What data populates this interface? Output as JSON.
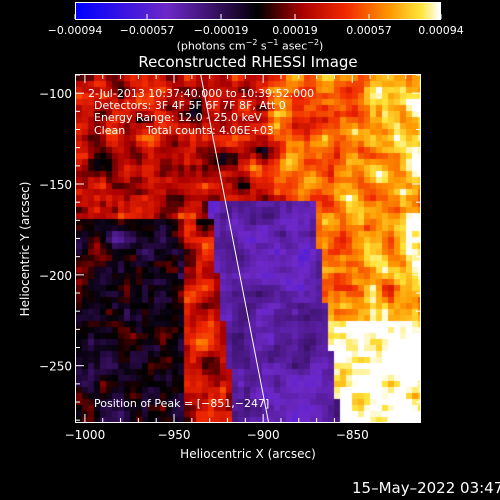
{
  "chart_data": {
    "type": "heatmap",
    "title": "Reconstructed RHESSI Image",
    "xlabel": "Heliocentric X (arcsec)",
    "ylabel": "Heliocentric Y (arcsec)",
    "xlim": [
      -1005,
      -812
    ],
    "ylim": [
      -281,
      -90
    ],
    "x_ticks": [
      -1000,
      -950,
      -900,
      -850
    ],
    "x_tick_labels": [
      "−1000",
      "−950",
      "−900",
      "−850"
    ],
    "y_ticks": [
      -100,
      -150,
      -200,
      -250
    ],
    "y_tick_labels": [
      "−100",
      "−150",
      "−200",
      "−250"
    ],
    "colorbar": {
      "ticks": [
        -0.00094,
        -0.00057,
        -0.00019,
        0.00019,
        0.00057,
        0.00094
      ],
      "tick_labels": [
        "−0.00094",
        "−0.00057",
        "−0.00019",
        "0.00019",
        "0.00057",
        "0.00094"
      ],
      "unit_label_parts": [
        "(photons cm",
        "−2",
        " s",
        "−1",
        " asec",
        "−2",
        ")"
      ]
    },
    "peak": [
      -851,
      -247
    ],
    "limb_line": [
      [
        -935,
        -90
      ],
      [
        -897,
        -281
      ]
    ]
  },
  "annotations": {
    "time_range": "2-Jul-2013 10:37:40.000 to 10:39:52.000",
    "detectors": "Detectors: 3F 4F 5F 6F 7F 8F, Att 0",
    "energy": "Energy Range: 12.0 - 25.0 keV",
    "method": "Clean",
    "counts": "Total counts: 4.06E+03",
    "peak_text": "Position of Peak = [−851,−247]"
  },
  "footer": {
    "timestamp": "15–May–2022 03:47"
  }
}
